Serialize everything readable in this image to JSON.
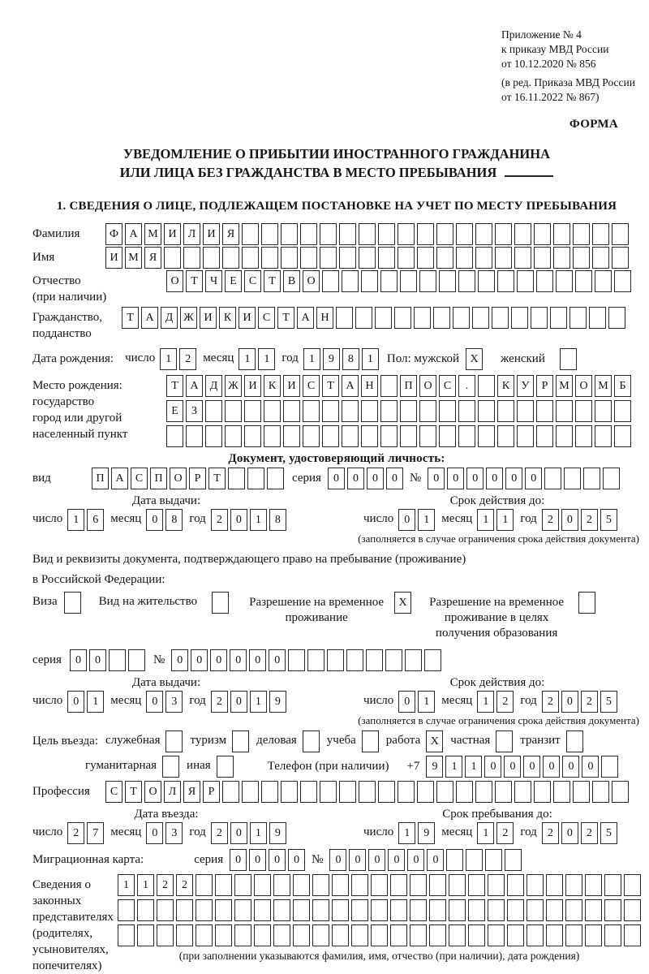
{
  "document": {
    "appendix_lines": [
      "Приложение № 4",
      "к приказу МВД России",
      "от 10.12.2020 № 856"
    ],
    "edition_lines": [
      "(в ред. Приказа МВД России",
      "от 16.11.2022 № 867)"
    ],
    "form_label": "ФОРМА",
    "title_line1": "УВЕДОМЛЕНИЕ О ПРИБЫТИИ ИНОСТРАННОГО ГРАЖДАНИНА",
    "title_line2": "ИЛИ ЛИЦА БЕЗ ГРАЖДАНСТВА В МЕСТО ПРЕБЫВАНИЯ",
    "section1_heading": "1. СВЕДЕНИЯ О ЛИЦЕ, ПОДЛЕЖАЩЕМ ПОСТАНОВКЕ НА УЧЕТ ПО МЕСТУ ПРЕБЫВАНИЯ",
    "ink_color": "#1a1a1a"
  },
  "labels": {
    "surname": "Фамилия",
    "name": "Имя",
    "patronymic_1": "Отчество",
    "patronymic_2": "(при наличии)",
    "citizenship_1": "Гражданство,",
    "citizenship_2": "подданство",
    "birth_date": "Дата рождения:",
    "day": "число",
    "month": "месяц",
    "year": "год",
    "gender_male": "Пол: мужской",
    "gender_female": "женский",
    "birth_place_1": "Место рождения:",
    "birth_place_2": "государство",
    "birth_place_3": "город или другой",
    "birth_place_4": "населенный пункт",
    "identity_doc_heading": "Документ, удостоверяющий личность:",
    "doc_kind": "вид",
    "seria": "серия",
    "number_sign": "№",
    "issue_date": "Дата выдачи:",
    "valid_until": "Срок действия до:",
    "validity_note": "(заполняется в случае ограничения срока действия документа)",
    "resident_doc_line1": "Вид и реквизиты документа, подтверждающего право на пребывание (проживание)",
    "resident_doc_line2": "в Российской Федерации:",
    "entry_purpose": "Цель въезда:",
    "phone": "Телефон (при наличии)",
    "phone_prefix": "+7",
    "profession": "Профессия",
    "entry_date": "Дата въезда:",
    "stay_until": "Срок пребывания до:",
    "migration_card": "Миграционная карта:",
    "representatives_1": "Сведения о",
    "representatives_2": "законных",
    "representatives_3": "представителях",
    "representatives_4": "(родителях,",
    "representatives_5": "усыновителях,",
    "representatives_6": "попечителях)",
    "representatives_note": "(при заполнении указываются фамилия, имя, отчество (при наличии), дата рождения)"
  },
  "resident_options": [
    {
      "label": "Виза",
      "box": {
        "text": "",
        "count": 1
      }
    },
    {
      "label": "Вид на жительство",
      "box": {
        "text": "",
        "count": 1
      }
    },
    {
      "label": "Разрешение на временное проживание",
      "box": {
        "text": "X",
        "count": 1
      }
    },
    {
      "label": "Разрешение на временное проживание в целях получения образования",
      "box": {
        "text": "",
        "count": 1
      }
    }
  ],
  "purpose_options_row1": [
    {
      "label": "служебная",
      "box": {
        "text": "",
        "count": 1
      }
    },
    {
      "label": "туризм",
      "box": {
        "text": "",
        "count": 1
      }
    },
    {
      "label": "деловая",
      "box": {
        "text": "",
        "count": 1
      }
    },
    {
      "label": "учеба",
      "box": {
        "text": "",
        "count": 1
      }
    },
    {
      "label": "работа",
      "box": {
        "text": "X",
        "count": 1
      }
    },
    {
      "label": "частная",
      "box": {
        "text": "",
        "count": 1
      }
    },
    {
      "label": "транзит",
      "box": {
        "text": "",
        "count": 1
      }
    }
  ],
  "purpose_options_row2": [
    {
      "label": "гуманитарная",
      "box": {
        "text": "",
        "count": 1
      }
    },
    {
      "label": "иная",
      "box": {
        "text": "",
        "count": 1
      }
    }
  ],
  "cells": {
    "surname": {
      "text": "ФАМИЛИЯ",
      "count": 27
    },
    "name": {
      "text": "ИМЯ",
      "count": 27
    },
    "patronymic": {
      "text": "ОТЧЕСТВО",
      "count": 24
    },
    "citizenship": {
      "text": "ТАДЖИКИСТАН",
      "count": 26
    },
    "birth_day": {
      "text": "12",
      "count": 2
    },
    "birth_month": {
      "text": "11",
      "count": 2
    },
    "birth_year": {
      "text": "1981",
      "count": 4
    },
    "gender_male_box": {
      "text": "X",
      "count": 1
    },
    "gender_female_box": {
      "text": "",
      "count": 1
    },
    "birth_place_row1": {
      "text": "ТАДЖИКИСТАН ПОС. КУРМОМБ",
      "count": 24
    },
    "birth_place_row2": {
      "text": "ЕЗ",
      "count": 24
    },
    "birth_place_row3": {
      "text": "",
      "count": 24
    },
    "id_doc_kind": {
      "text": "ПАСПОРТ",
      "count": 10
    },
    "id_doc_seria": {
      "text": "0000",
      "count": 4
    },
    "id_doc_number": {
      "text": "000000",
      "count": 10
    },
    "id_issue_day": {
      "text": "16",
      "count": 2
    },
    "id_issue_month": {
      "text": "08",
      "count": 2
    },
    "id_issue_year": {
      "text": "2018",
      "count": 4
    },
    "id_valid_day": {
      "text": "01",
      "count": 2
    },
    "id_valid_month": {
      "text": "11",
      "count": 2
    },
    "id_valid_year": {
      "text": "2025",
      "count": 4
    },
    "permit_seria": {
      "text": "00",
      "count": 4
    },
    "permit_number": {
      "text": "000000",
      "count": 14
    },
    "permit_issue_day": {
      "text": "01",
      "count": 2
    },
    "permit_issue_month": {
      "text": "03",
      "count": 2
    },
    "permit_issue_year": {
      "text": "2019",
      "count": 4
    },
    "permit_valid_day": {
      "text": "01",
      "count": 2
    },
    "permit_valid_month": {
      "text": "12",
      "count": 2
    },
    "permit_valid_year": {
      "text": "2025",
      "count": 4
    },
    "phone_number": {
      "text": "911000000",
      "count": 10
    },
    "profession": {
      "text": "СТОЛЯР",
      "count": 27
    },
    "entry_day": {
      "text": "27",
      "count": 2
    },
    "entry_month": {
      "text": "03",
      "count": 2
    },
    "entry_year": {
      "text": "2019",
      "count": 4
    },
    "stay_day": {
      "text": "19",
      "count": 2
    },
    "stay_month": {
      "text": "12",
      "count": 2
    },
    "stay_year": {
      "text": "2025",
      "count": 4
    },
    "migration_seria": {
      "text": "0000",
      "count": 4
    },
    "migration_number": {
      "text": "000000",
      "count": 10
    },
    "representatives_row1": {
      "text": "1122",
      "count": 27
    },
    "representatives_row2": {
      "text": "",
      "count": 27
    },
    "representatives_row3": {
      "text": "",
      "count": 27
    }
  }
}
